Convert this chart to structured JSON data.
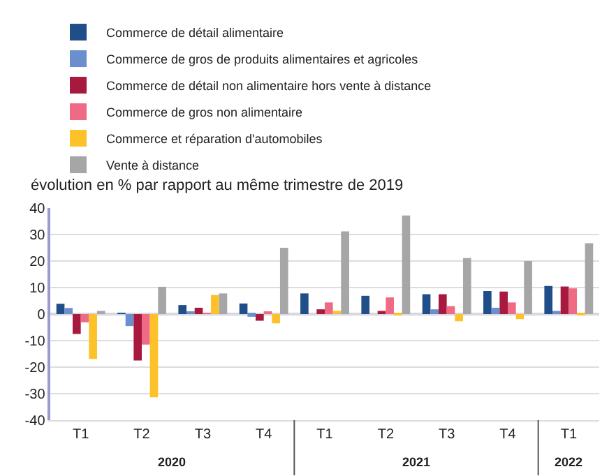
{
  "chart_data": {
    "type": "bar",
    "ylabel": "évolution en % par rapport au même trimestre de 2019",
    "categories": [
      "T1",
      "T2",
      "T3",
      "T4",
      "T1",
      "T2",
      "T3",
      "T4",
      "T1"
    ],
    "annotations": [
      "2020",
      "2021",
      "2022"
    ],
    "series": [
      {
        "name": "Commerce de détail alimentaire",
        "color": "#1f4e89",
        "values": [
          3.9,
          0.5,
          3.4,
          4,
          7.8,
          6.9,
          7.5,
          8.7,
          10.6
        ]
      },
      {
        "name": "Commerce de gros de produits alimentaires et agricoles",
        "color": "#6a8fcc",
        "values": [
          2.3,
          -4.5,
          0.6,
          -1,
          0,
          0,
          1.8,
          2.4,
          1.2
        ]
      },
      {
        "name": "Commerce de détail non alimentaire hors vente à distance",
        "color": "#a8193f",
        "values": [
          -7.5,
          -17.5,
          2.4,
          -2.5,
          1.8,
          1.2,
          7.5,
          8.5,
          10.4
        ]
      },
      {
        "name": "Commerce de gros non alimentaire",
        "color": "#ef6a85",
        "values": [
          -3.1,
          -11.5,
          0.3,
          0.8,
          4.4,
          6.3,
          3,
          4.4,
          9.7
        ]
      },
      {
        "name": "Commerce et réparation d'automobiles",
        "color": "#fdc12a",
        "values": [
          -16.9,
          -31.4,
          7.2,
          -3.5,
          1.2,
          -0.3,
          -2.7,
          -1.9,
          -0.2
        ]
      },
      {
        "name": "Vente à distance",
        "color": "#a6a6a6",
        "values": [
          1.2,
          10.3,
          7.8,
          25,
          31.2,
          37.2,
          21.1,
          20,
          26.7
        ]
      }
    ],
    "ylim": [
      -40,
      40
    ],
    "yticks": [
      -40,
      -30,
      -20,
      -10,
      0,
      10,
      20,
      30,
      40
    ],
    "ref_lines": [
      {
        "axis": "y",
        "value": 0,
        "color": "#9a9ad0"
      }
    ],
    "grid": "y",
    "legend": "top left"
  }
}
